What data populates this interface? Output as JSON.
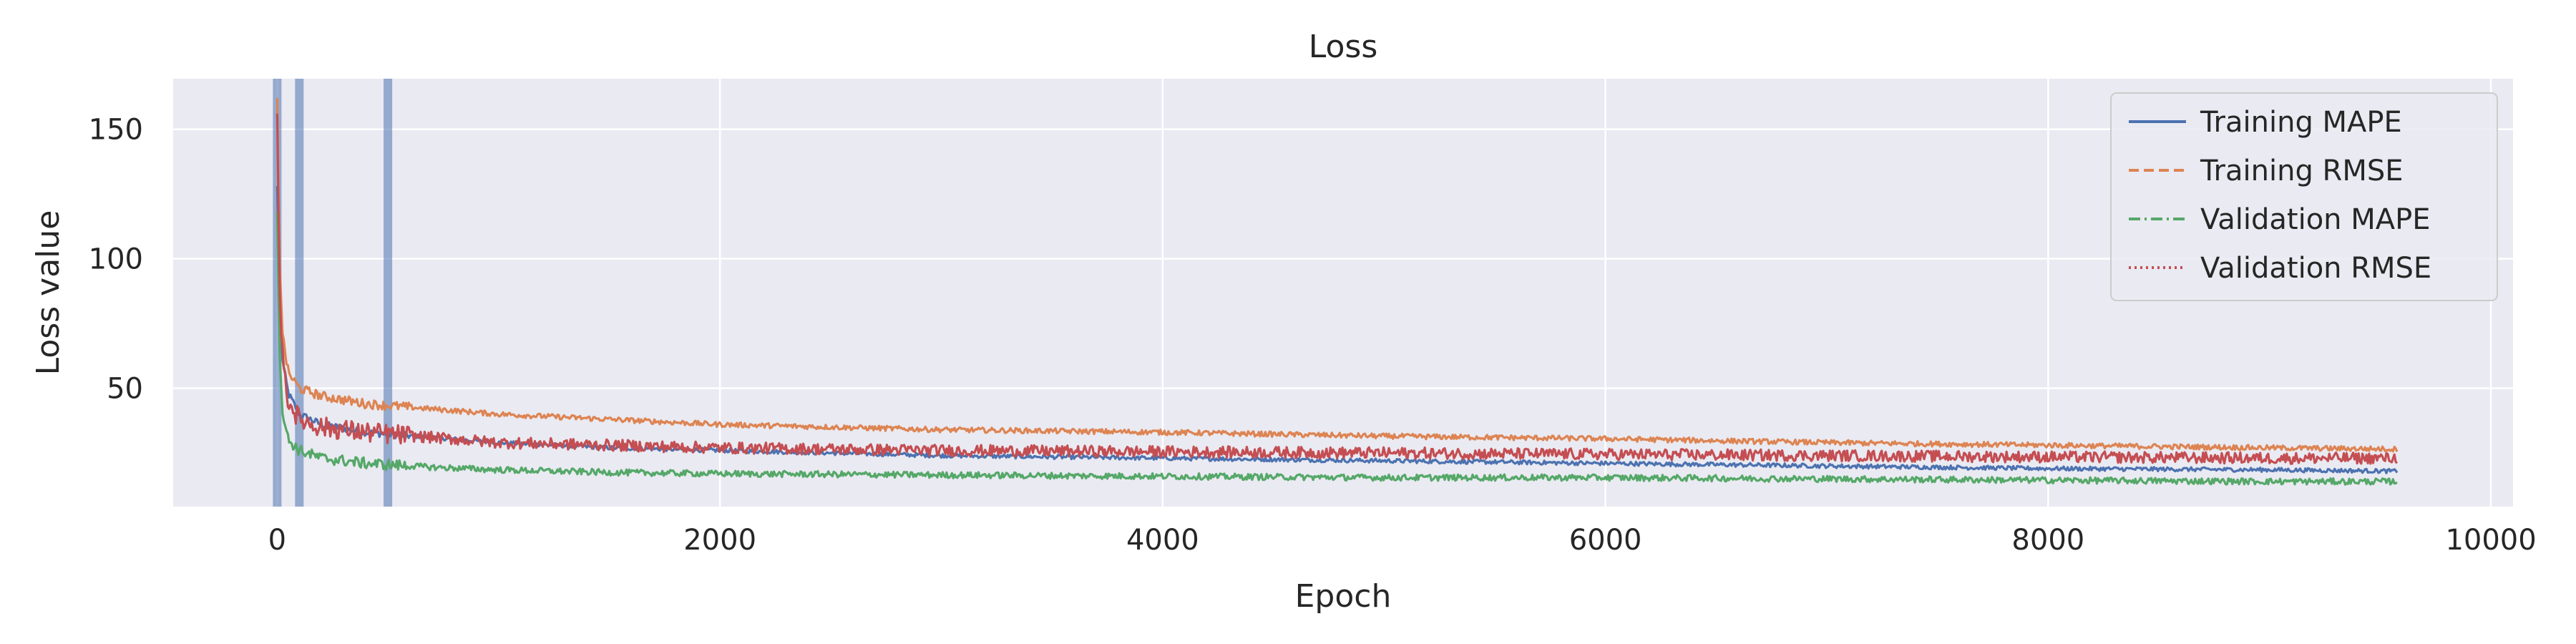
{
  "chart_data": {
    "type": "line",
    "title": "Loss",
    "xlabel": "Epoch",
    "ylabel": "Loss value",
    "xlim": [
      -470,
      10100
    ],
    "ylim": [
      4.3,
      169.5
    ],
    "x_ticks": [
      {
        "value": 0,
        "label": "0"
      },
      {
        "value": 2000,
        "label": "2000"
      },
      {
        "value": 4000,
        "label": "4000"
      },
      {
        "value": 6000,
        "label": "6000"
      },
      {
        "value": 8000,
        "label": "8000"
      },
      {
        "value": 10000,
        "label": "10000"
      }
    ],
    "y_ticks": [
      {
        "value": 50,
        "label": "50"
      },
      {
        "value": 100,
        "label": "100"
      },
      {
        "value": 150,
        "label": "150"
      }
    ],
    "grid": true,
    "legend_position": "top-right",
    "background_color": "#EAEAF2",
    "vertical_markers": [
      0,
      100,
      500
    ],
    "marker_color": "#4C72B0",
    "series": [
      {
        "name": "Training MAPE",
        "color": "#4C72B0",
        "dash": "solid",
        "x": [
          0,
          10,
          25,
          50,
          100,
          200,
          400,
          700,
          1000,
          1500,
          2000,
          3000,
          4000,
          5000,
          6000,
          7000,
          8000,
          9000,
          9580
        ],
        "y": [
          128,
          85,
          60,
          48,
          40,
          36,
          33,
          31,
          29,
          27,
          26,
          24,
          23,
          22,
          21,
          20,
          19,
          18.5,
          18
        ],
        "noise": 0.8
      },
      {
        "name": "Training RMSE",
        "color": "#DD8452",
        "dash": "dashed",
        "x": [
          0,
          10,
          25,
          50,
          100,
          200,
          400,
          700,
          1000,
          1500,
          2000,
          3000,
          4000,
          5000,
          6000,
          7000,
          8000,
          9000,
          9580
        ],
        "y": [
          162,
          100,
          70,
          56,
          50,
          47,
          44,
          42,
          40,
          38,
          36,
          34,
          33,
          31.5,
          30.5,
          29,
          28,
          27,
          26.5
        ],
        "noise": 1.0
      },
      {
        "name": "Validation MAPE",
        "color": "#55A868",
        "dash": "dashdot",
        "x": [
          0,
          10,
          25,
          50,
          100,
          200,
          400,
          700,
          1000,
          1500,
          2000,
          3000,
          4000,
          5000,
          6000,
          7000,
          8000,
          9000,
          9580
        ],
        "y": [
          118,
          65,
          40,
          30,
          26,
          23,
          21,
          19.5,
          18.5,
          17.5,
          17,
          16.5,
          16,
          15.5,
          15.5,
          15,
          14.5,
          14,
          14
        ],
        "noise": 1.2
      },
      {
        "name": "Validation RMSE",
        "color": "#C44E52",
        "dash": "dotted",
        "x": [
          0,
          10,
          25,
          50,
          100,
          200,
          400,
          700,
          1000,
          1500,
          2000,
          3000,
          4000,
          5000,
          6000,
          7000,
          8000,
          9000,
          9580
        ],
        "y": [
          156,
          90,
          60,
          45,
          38,
          35,
          33,
          31,
          29,
          28,
          27,
          26,
          25.5,
          25,
          24.5,
          24,
          23.5,
          23,
          23
        ],
        "noise": 2.2
      }
    ]
  }
}
